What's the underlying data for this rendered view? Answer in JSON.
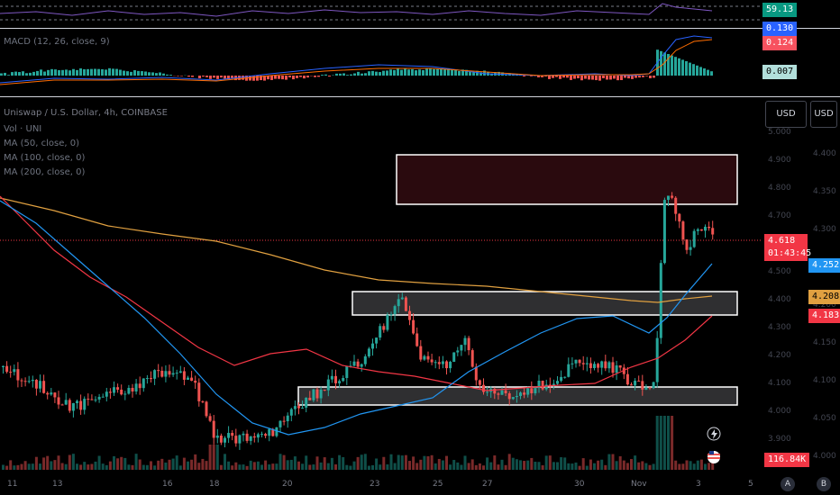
{
  "rsi": {
    "value": "59.13",
    "value_color": "#089981"
  },
  "macd": {
    "label": "MACD (12, 26, close, 9)",
    "hidden_value": "0.130",
    "signal_value": "0.124",
    "hist_value": "0.007",
    "colors": {
      "macd": "#2962ff",
      "signal": "#f7525f",
      "hist_pos": "#26a69a",
      "hist_neg": "#ef5350"
    }
  },
  "main": {
    "symbol_line": "Uniswap / U.S. Dollar, 4h, COINBASE",
    "indicators": [
      "Vol · UNI",
      "MA (50, close, 0)",
      "MA (100, close, 0)",
      "MA (200, close, 0)"
    ],
    "currency_left": "USD",
    "currency_right": "USD",
    "price_tag": "4.618",
    "countdown": "01:43:45",
    "ma50_tag": "4.252",
    "ma200_tag": "4.208",
    "ma100_tag": "4.183",
    "volume_tag": "116.84K",
    "scale_left": [
      "5.000",
      "4.900",
      "4.800",
      "4.700",
      "4.600",
      "4.500",
      "4.400",
      "4.300",
      "4.200",
      "4.100",
      "4.000",
      "3.900"
    ],
    "scale_right": [
      "4.400",
      "4.350",
      "4.300",
      "4.250",
      "4.200",
      "4.150",
      "4.100",
      "4.050",
      "4.000"
    ],
    "colors": {
      "up": "#26a69a",
      "down": "#ef5350",
      "ma50": "#2196f3",
      "ma100": "#f23645",
      "ma200": "#e0a040"
    }
  },
  "xaxis": {
    "labels": [
      "11",
      "13",
      "16",
      "18",
      "20",
      "23",
      "25",
      "27",
      "30",
      "Nov",
      "3",
      "5"
    ],
    "right_a": "A",
    "right_b": "B"
  }
}
